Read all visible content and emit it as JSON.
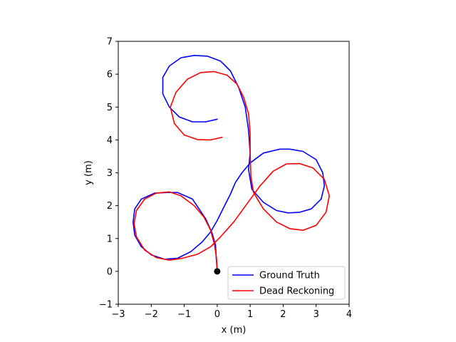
{
  "chart_data": {
    "type": "line",
    "xlabel": "x (m)",
    "ylabel": "y (m)",
    "xlim": [
      -3,
      4
    ],
    "ylim": [
      -1,
      7
    ],
    "xticks": [
      "−3",
      "−2",
      "−1",
      "0",
      "1",
      "2",
      "3",
      "4"
    ],
    "yticks": [
      "−1",
      "0",
      "1",
      "2",
      "3",
      "4",
      "5",
      "6",
      "7"
    ],
    "grid": false,
    "legend_position": "lower-right",
    "series": [
      {
        "name": "Ground Truth",
        "color": "#0000ff",
        "points": [
          [
            0,
            0
          ],
          [
            -0.03,
            0.4
          ],
          [
            -0.05,
            0.8
          ],
          [
            -0.15,
            1.15
          ],
          [
            -0.35,
            1.6
          ],
          [
            -0.75,
            2.2
          ],
          [
            -1.2,
            2.4
          ],
          [
            -1.5,
            2.4
          ],
          [
            -1.9,
            2.38
          ],
          [
            -2.3,
            2.2
          ],
          [
            -2.5,
            1.9
          ],
          [
            -2.55,
            1.5
          ],
          [
            -2.5,
            1.1
          ],
          [
            -2.3,
            0.75
          ],
          [
            -2.0,
            0.5
          ],
          [
            -1.6,
            0.37
          ],
          [
            -1.2,
            0.4
          ],
          [
            -0.8,
            0.6
          ],
          [
            -0.45,
            0.9
          ],
          [
            -0.2,
            1.2
          ],
          [
            0.0,
            1.55
          ],
          [
            0.2,
            1.95
          ],
          [
            0.4,
            2.35
          ],
          [
            0.55,
            2.7
          ],
          [
            0.75,
            3.0
          ],
          [
            1.0,
            3.3
          ],
          [
            1.4,
            3.6
          ],
          [
            1.9,
            3.72
          ],
          [
            2.2,
            3.72
          ],
          [
            2.6,
            3.65
          ],
          [
            3.0,
            3.4
          ],
          [
            3.2,
            3.0
          ],
          [
            3.25,
            2.6
          ],
          [
            3.15,
            2.2
          ],
          [
            2.85,
            1.9
          ],
          [
            2.5,
            1.8
          ],
          [
            2.15,
            1.78
          ],
          [
            1.8,
            1.85
          ],
          [
            1.4,
            2.1
          ],
          [
            1.05,
            2.5
          ],
          [
            0.95,
            3.1
          ],
          [
            1.0,
            3.6
          ],
          [
            0.95,
            4.3
          ],
          [
            0.85,
            5.0
          ],
          [
            0.65,
            5.6
          ],
          [
            0.4,
            6.1
          ],
          [
            0.1,
            6.4
          ],
          [
            -0.3,
            6.55
          ],
          [
            -0.7,
            6.57
          ],
          [
            -1.1,
            6.5
          ],
          [
            -1.45,
            6.25
          ],
          [
            -1.65,
            5.9
          ],
          [
            -1.65,
            5.4
          ],
          [
            -1.45,
            5.0
          ],
          [
            -1.15,
            4.7
          ],
          [
            -0.75,
            4.55
          ],
          [
            -0.35,
            4.55
          ],
          [
            0,
            4.63
          ]
        ]
      },
      {
        "name": "Dead Reckoning",
        "color": "#ff0000",
        "points": [
          [
            0,
            0
          ],
          [
            -0.02,
            0.4
          ],
          [
            -0.08,
            0.8
          ],
          [
            -0.2,
            1.25
          ],
          [
            -0.4,
            1.65
          ],
          [
            -0.7,
            2.0
          ],
          [
            -1.1,
            2.3
          ],
          [
            -1.45,
            2.42
          ],
          [
            -1.85,
            2.38
          ],
          [
            -2.2,
            2.2
          ],
          [
            -2.45,
            1.85
          ],
          [
            -2.52,
            1.45
          ],
          [
            -2.45,
            1.05
          ],
          [
            -2.2,
            0.65
          ],
          [
            -1.85,
            0.42
          ],
          [
            -1.45,
            0.34
          ],
          [
            -1.05,
            0.4
          ],
          [
            -0.6,
            0.52
          ],
          [
            -0.2,
            0.75
          ],
          [
            0.1,
            1.05
          ],
          [
            0.5,
            1.5
          ],
          [
            0.9,
            2.05
          ],
          [
            1.3,
            2.6
          ],
          [
            1.7,
            3.05
          ],
          [
            2.1,
            3.27
          ],
          [
            2.5,
            3.28
          ],
          [
            2.9,
            3.15
          ],
          [
            3.25,
            2.8
          ],
          [
            3.4,
            2.3
          ],
          [
            3.3,
            1.8
          ],
          [
            3.0,
            1.4
          ],
          [
            2.6,
            1.25
          ],
          [
            2.2,
            1.3
          ],
          [
            1.8,
            1.5
          ],
          [
            1.4,
            1.9
          ],
          [
            1.1,
            2.4
          ],
          [
            1.02,
            2.9
          ],
          [
            1.0,
            3.6
          ],
          [
            1.0,
            4.2
          ],
          [
            0.95,
            4.8
          ],
          [
            0.8,
            5.3
          ],
          [
            0.6,
            5.7
          ],
          [
            0.3,
            5.97
          ],
          [
            -0.1,
            6.08
          ],
          [
            -0.5,
            6.05
          ],
          [
            -0.9,
            5.85
          ],
          [
            -1.25,
            5.45
          ],
          [
            -1.42,
            5.0
          ],
          [
            -1.3,
            4.5
          ],
          [
            -1.0,
            4.15
          ],
          [
            -0.6,
            4.01
          ],
          [
            -0.2,
            4.0
          ],
          [
            0.15,
            4.08
          ]
        ]
      }
    ],
    "start_marker": {
      "x": 0,
      "y": 0,
      "color": "#000000"
    }
  }
}
